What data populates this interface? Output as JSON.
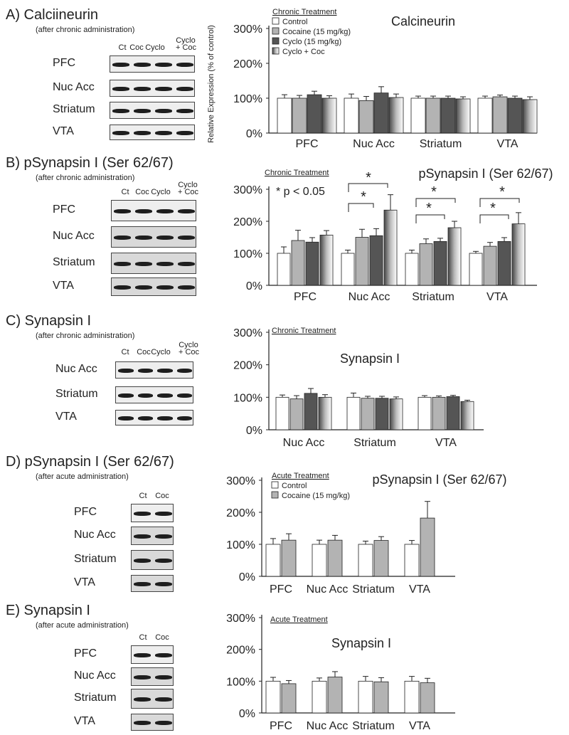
{
  "colors": {
    "control": "#ffffff",
    "cocaine": "#b3b3b3",
    "cyclo": "#555555",
    "cyclo_coc": "gradient-gray",
    "axis": "#222222"
  },
  "panels": [
    {
      "letter": "A)",
      "title": "Calciineurin",
      "subtitle": "(after chronic administration)",
      "lanes": [
        "Ct",
        "Coc",
        "Cyclo",
        "Cyclo\n+ Coc"
      ],
      "regions": [
        "PFC",
        "Nuc Acc",
        "Striatum",
        "VTA"
      ]
    },
    {
      "letter": "B)",
      "title": "pSynapsin I (Ser 62/67)",
      "subtitle": "(after chronic administration)",
      "lanes": [
        "Ct",
        "Coc",
        "Cyclo",
        "Cyclo\n+ Coc"
      ],
      "regions": [
        "PFC",
        "Nuc Acc",
        "Striatum",
        "VTA"
      ]
    },
    {
      "letter": "C)",
      "title": "Synapsin I",
      "subtitle": "(after chronic administration)",
      "lanes": [
        "Ct",
        "Coc",
        "Cyclo",
        "Cyclo\n+ Coc"
      ],
      "regions": [
        "Nuc Acc",
        "Striatum",
        "VTA"
      ]
    },
    {
      "letter": "D)",
      "title": "pSynapsin I (Ser 62/67)",
      "subtitle": "(after acute administration)",
      "lanes": [
        "Ct",
        "Coc"
      ],
      "regions": [
        "PFC",
        "Nuc Acc",
        "Striatum",
        "VTA"
      ]
    },
    {
      "letter": "E)",
      "title": "Synapsin I",
      "subtitle": "(after acute administration)",
      "lanes": [
        "Ct",
        "Coc"
      ],
      "regions": [
        "PFC",
        "Nuc Acc",
        "Striatum",
        "VTA"
      ]
    }
  ],
  "chart_data": [
    {
      "type": "bar",
      "title": "Calcineurin",
      "ylabel": "Relative Expression (% of control)",
      "legend_title": "Chronic Treatment",
      "categories": [
        "PFC",
        "Nuc Acc",
        "Striatum",
        "VTA"
      ],
      "yticks": [
        "0%",
        "100%",
        "200%",
        "300%"
      ],
      "ylim": [
        0,
        300
      ],
      "series": [
        {
          "name": "Control",
          "values": [
            100,
            100,
            100,
            100
          ],
          "errors": [
            10,
            12,
            6,
            6
          ]
        },
        {
          "name": "Cocaine (15 mg/kg)",
          "values": [
            100,
            93,
            100,
            104
          ],
          "errors": [
            8,
            12,
            6,
            5
          ]
        },
        {
          "name": "Cyclo (15 mg/kg)",
          "values": [
            110,
            115,
            100,
            100
          ],
          "errors": [
            10,
            18,
            6,
            6
          ]
        },
        {
          "name": "Cyclo + Coc",
          "values": [
            100,
            102,
            98,
            96
          ],
          "errors": [
            7,
            10,
            6,
            8
          ]
        }
      ]
    },
    {
      "type": "bar",
      "title": "pSynapsin I (Ser 62/67)",
      "legend_title": "Chronic Treatment",
      "annotation": "* p < 0.05",
      "categories": [
        "PFC",
        "Nuc Acc",
        "Striatum",
        "VTA"
      ],
      "yticks": [
        "0%",
        "100%",
        "200%",
        "300%"
      ],
      "ylim": [
        0,
        300
      ],
      "series": [
        {
          "name": "Control",
          "values": [
            100,
            100,
            100,
            100
          ],
          "errors": [
            20,
            10,
            10,
            6
          ]
        },
        {
          "name": "Cocaine",
          "values": [
            140,
            150,
            130,
            122
          ],
          "errors": [
            32,
            25,
            15,
            12
          ]
        },
        {
          "name": "Cyclo",
          "values": [
            135,
            155,
            137,
            137
          ],
          "errors": [
            14,
            22,
            10,
            12
          ]
        },
        {
          "name": "Cyclo + Coc",
          "values": [
            157,
            235,
            180,
            192
          ],
          "errors": [
            14,
            48,
            20,
            35
          ]
        }
      ],
      "significance_marks": [
        "*",
        "*",
        "*",
        "*",
        "*",
        "*"
      ]
    },
    {
      "type": "bar",
      "title": "Synapsin I",
      "legend_title": "Chronic Treatment",
      "categories": [
        "Nuc Acc",
        "Striatum",
        "VTA"
      ],
      "yticks": [
        "0%",
        "100%",
        "200%",
        "300%"
      ],
      "ylim": [
        0,
        300
      ],
      "series": [
        {
          "name": "Control",
          "values": [
            100,
            100,
            100
          ],
          "errors": [
            7,
            13,
            5
          ]
        },
        {
          "name": "Cocaine",
          "values": [
            95,
            97,
            100
          ],
          "errors": [
            10,
            6,
            4
          ]
        },
        {
          "name": "Cyclo",
          "values": [
            112,
            97,
            102
          ],
          "errors": [
            15,
            6,
            4
          ]
        },
        {
          "name": "Cyclo + Coc",
          "values": [
            100,
            95,
            87
          ],
          "errors": [
            8,
            6,
            4
          ]
        }
      ]
    },
    {
      "type": "bar",
      "title": "pSynapsin I (Ser 62/67)",
      "legend_title": "Acute Treatment",
      "categories": [
        "PFC",
        "Nuc Acc",
        "Striatum",
        "VTA"
      ],
      "yticks": [
        "0%",
        "100%",
        "200%",
        "300%"
      ],
      "ylim": [
        0,
        300
      ],
      "series": [
        {
          "name": "Control",
          "values": [
            100,
            100,
            100,
            100
          ],
          "errors": [
            18,
            13,
            10,
            12
          ]
        },
        {
          "name": "Cocaine (15 mg/kg)",
          "values": [
            113,
            113,
            112,
            182
          ],
          "errors": [
            20,
            15,
            12,
            52
          ]
        }
      ]
    },
    {
      "type": "bar",
      "title": "Synapsin I",
      "legend_title": "Acute Treatment",
      "categories": [
        "PFC",
        "Nuc Acc",
        "Striatum",
        "VTA"
      ],
      "yticks": [
        "0%",
        "100%",
        "200%",
        "300%"
      ],
      "ylim": [
        0,
        300
      ],
      "series": [
        {
          "name": "Control",
          "values": [
            100,
            100,
            100,
            100
          ],
          "errors": [
            12,
            10,
            15,
            15
          ]
        },
        {
          "name": "Cocaine",
          "values": [
            92,
            113,
            98,
            95
          ],
          "errors": [
            10,
            17,
            13,
            14
          ]
        }
      ]
    }
  ]
}
